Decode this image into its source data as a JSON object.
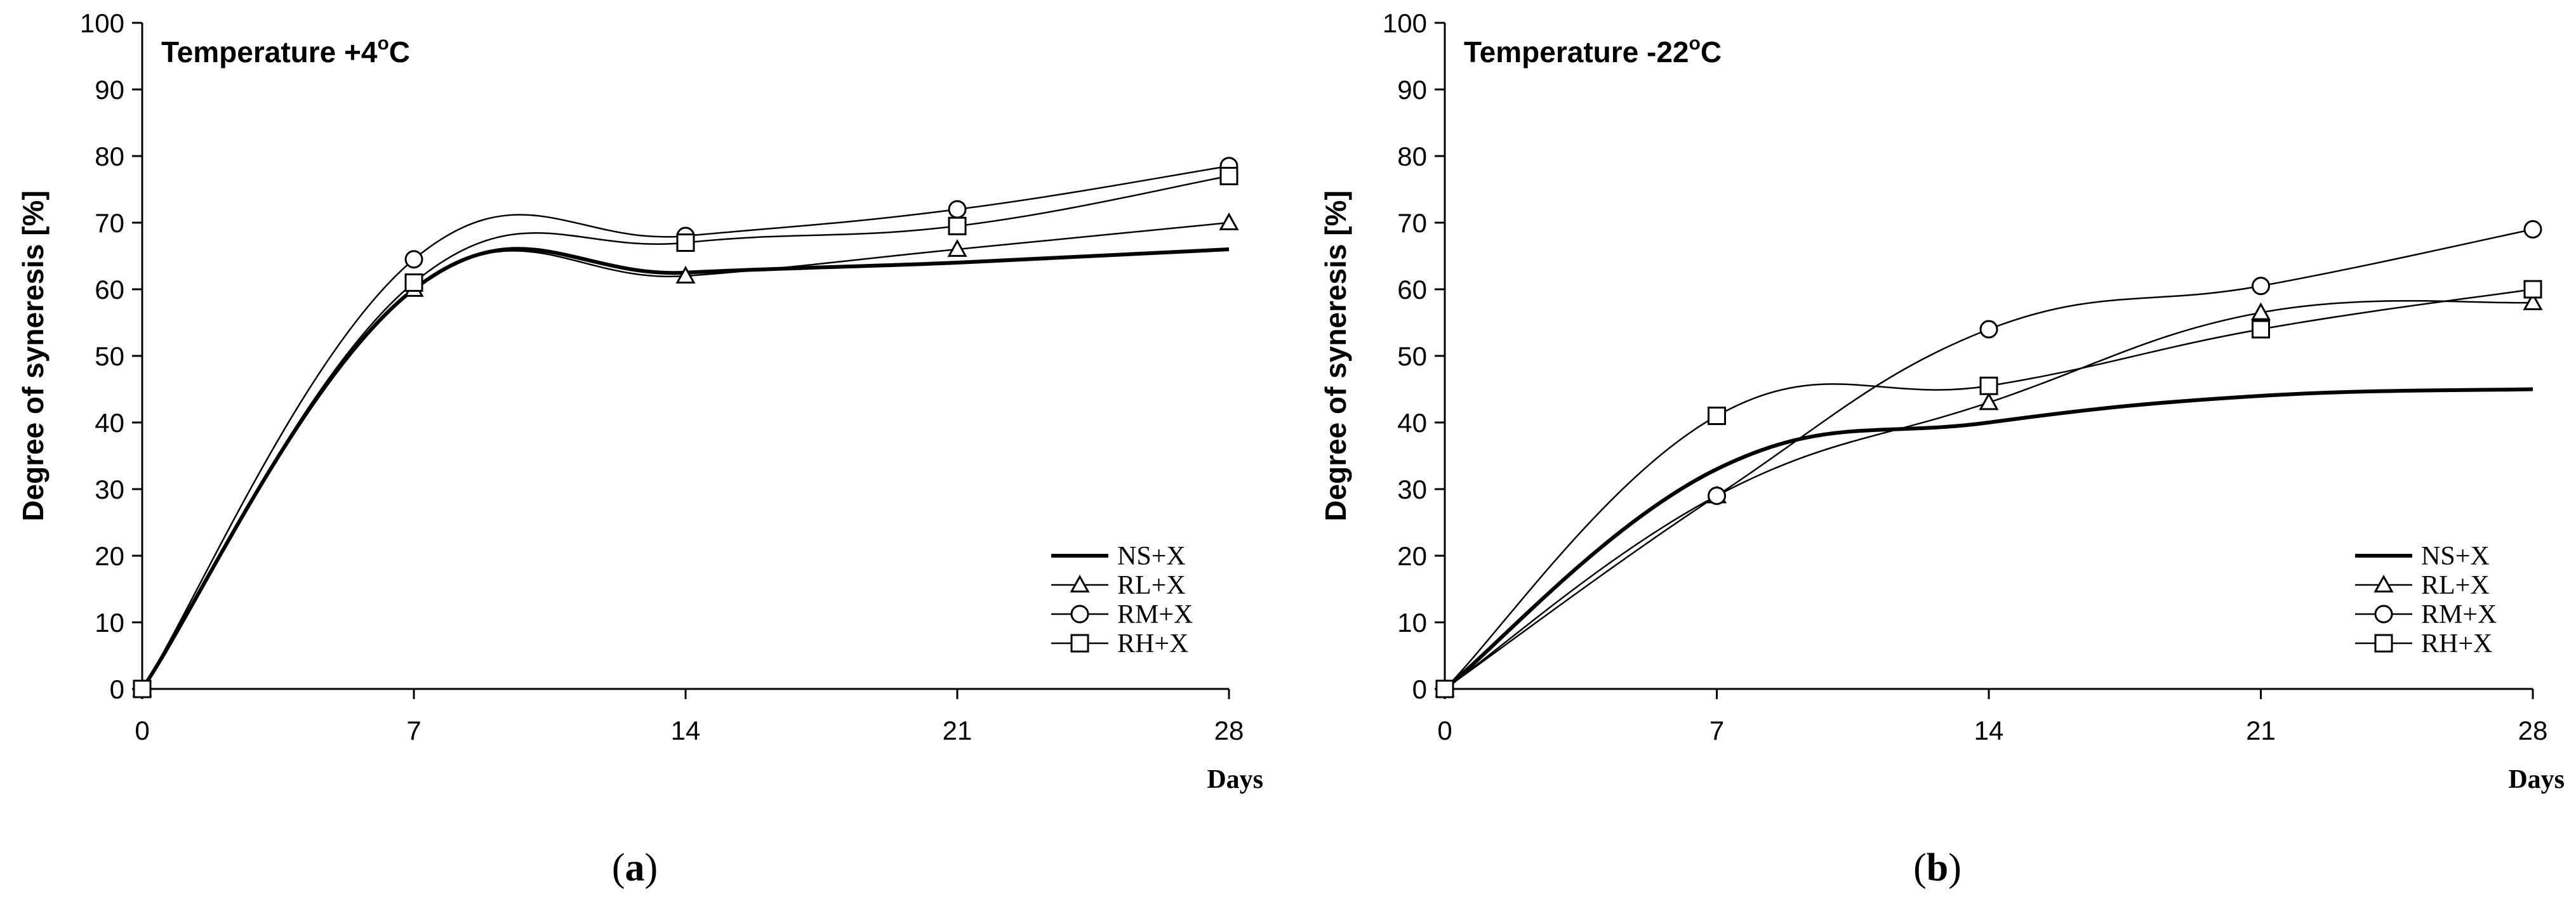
{
  "chart_data": [
    {
      "type": "line",
      "panel_label": "a",
      "title_prefix": "Temperature +4",
      "title_degree": "o",
      "title_unit": "C",
      "xlabel": "Days",
      "ylabel": "Degree of syneresis [%]",
      "xlim": [
        0,
        28
      ],
      "ylim": [
        0,
        100
      ],
      "xticks": [
        0,
        7,
        14,
        21,
        28
      ],
      "yticks": [
        0,
        10,
        20,
        30,
        40,
        50,
        60,
        70,
        80,
        90,
        100
      ],
      "grid": false,
      "legend_position": "bottom-right",
      "x": [
        0,
        7,
        14,
        21,
        28
      ],
      "series": [
        {
          "name": "NS+X",
          "marker": "none",
          "values": [
            0,
            60,
            62.5,
            64,
            66
          ]
        },
        {
          "name": "RL+X",
          "marker": "triangle",
          "values": [
            0,
            60,
            62,
            66,
            70
          ]
        },
        {
          "name": "RM+X",
          "marker": "circle",
          "values": [
            0,
            64.5,
            68,
            72,
            78.5
          ]
        },
        {
          "name": "RH+X",
          "marker": "square",
          "values": [
            0,
            61,
            67,
            69.5,
            77
          ]
        }
      ]
    },
    {
      "type": "line",
      "panel_label": "b",
      "title_prefix": "Temperature -22",
      "title_degree": "o",
      "title_unit": "C",
      "xlabel": "Days",
      "ylabel": "Degree of syneresis [%]",
      "xlim": [
        0,
        28
      ],
      "ylim": [
        0,
        100
      ],
      "xticks": [
        0,
        7,
        14,
        21,
        28
      ],
      "yticks": [
        0,
        10,
        20,
        30,
        40,
        50,
        60,
        70,
        80,
        90,
        100
      ],
      "grid": false,
      "legend_position": "bottom-right",
      "x": [
        0,
        7,
        14,
        21,
        28
      ],
      "series": [
        {
          "name": "NS+X",
          "marker": "none",
          "values": [
            0,
            33,
            40,
            44,
            45
          ]
        },
        {
          "name": "RL+X",
          "marker": "triangle",
          "values": [
            0,
            29,
            43,
            56.5,
            58
          ]
        },
        {
          "name": "RM+X",
          "marker": "circle",
          "values": [
            0,
            29,
            54,
            60.5,
            69
          ]
        },
        {
          "name": "RH+X",
          "marker": "square",
          "values": [
            0,
            41,
            45.5,
            54,
            60
          ]
        }
      ]
    }
  ]
}
